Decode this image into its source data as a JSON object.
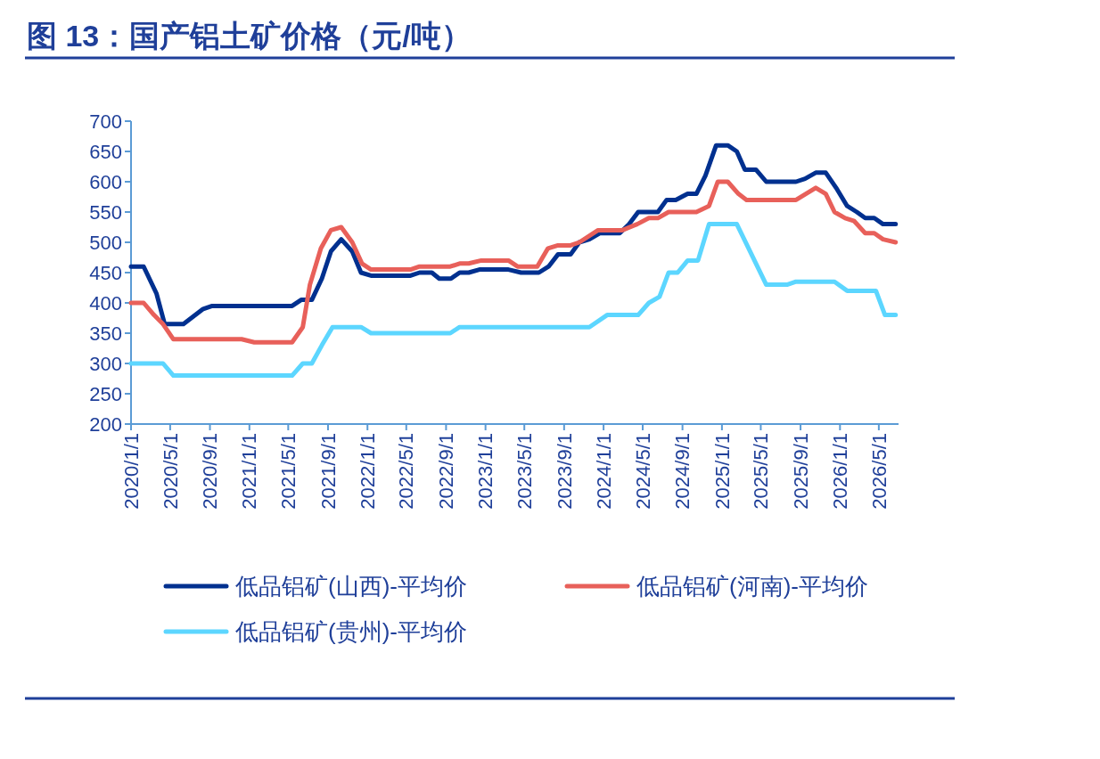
{
  "chart_data": {
    "type": "line",
    "title": "图 13：国产铝土矿价格（元/吨）",
    "xlim": [
      "2020-01-01",
      "2026-07-01"
    ],
    "xticks": [
      {
        "value": "2020-01-01",
        "label": "2020/1/1"
      },
      {
        "value": "2020-05-01",
        "label": "2020/5/1"
      },
      {
        "value": "2020-09-01",
        "label": "2020/9/1"
      },
      {
        "value": "2021-01-01",
        "label": "2021/1/1"
      },
      {
        "value": "2021-05-01",
        "label": "2021/5/1"
      },
      {
        "value": "2021-09-01",
        "label": "2021/9/1"
      },
      {
        "value": "2022-01-01",
        "label": "2022/1/1"
      },
      {
        "value": "2022-05-01",
        "label": "2022/5/1"
      },
      {
        "value": "2022-09-01",
        "label": "2022/9/1"
      },
      {
        "value": "2023-01-01",
        "label": "2023/1/1"
      },
      {
        "value": "2023-05-01",
        "label": "2023/5/1"
      },
      {
        "value": "2023-09-01",
        "label": "2023/9/1"
      },
      {
        "value": "2024-01-01",
        "label": "2024/1/1"
      },
      {
        "value": "2024-05-01",
        "label": "2024/5/1"
      },
      {
        "value": "2024-09-01",
        "label": "2024/9/1"
      },
      {
        "value": "2025-01-01",
        "label": "2025/1/1"
      },
      {
        "value": "2025-05-01",
        "label": "2025/5/1"
      },
      {
        "value": "2025-09-01",
        "label": "2025/9/1"
      },
      {
        "value": "2026-01-01",
        "label": "2026/1/1"
      },
      {
        "value": "2026-05-01",
        "label": "2026/5/1"
      }
    ],
    "ylim": [
      200,
      700
    ],
    "yticks": [
      200,
      250,
      300,
      350,
      400,
      450,
      500,
      550,
      600,
      650,
      700
    ],
    "grid": false,
    "legend": "bottom",
    "marker": "none",
    "line_style": "solid",
    "series": [
      {
        "name": "低品铝矿(山西)-平均价",
        "color": "#00308f",
        "x": [
          "2020-01-01",
          "2020-02-09",
          "2020-03-20",
          "2020-04-14",
          "2020-05-11",
          "2020-06-11",
          "2020-08-11",
          "2020-09-08",
          "2021-05-13",
          "2021-06-10",
          "2021-07-13",
          "2021-08-13",
          "2021-09-10",
          "2021-10-12",
          "2021-11-15",
          "2021-12-12",
          "2022-01-12",
          "2022-05-14",
          "2022-06-11",
          "2022-07-19",
          "2022-08-11",
          "2022-09-16",
          "2022-10-13",
          "2022-11-10",
          "2022-12-13",
          "2023-03-13",
          "2023-04-21",
          "2023-06-15",
          "2023-07-15",
          "2023-08-13",
          "2023-09-21",
          "2023-10-18",
          "2023-11-18",
          "2023-12-20",
          "2024-02-20",
          "2024-03-20",
          "2024-04-17",
          "2024-06-17",
          "2024-07-14",
          "2024-08-11",
          "2024-09-17",
          "2024-10-14",
          "2024-11-11",
          "2024-12-14",
          "2025-01-19",
          "2025-02-16",
          "2025-03-13",
          "2025-04-16",
          "2025-05-18",
          "2025-08-18",
          "2025-09-15",
          "2025-10-18",
          "2025-11-18",
          "2025-12-20",
          "2026-01-23",
          "2026-02-22",
          "2026-03-20",
          "2026-04-17",
          "2026-05-14",
          "2026-06-22"
        ],
        "values": [
          460,
          460,
          415,
          365,
          365,
          365,
          390,
          395,
          395,
          405,
          405,
          440,
          485,
          505,
          485,
          450,
          445,
          445,
          450,
          450,
          440,
          440,
          450,
          450,
          455,
          455,
          450,
          450,
          460,
          480,
          480,
          500,
          505,
          515,
          515,
          530,
          550,
          550,
          570,
          570,
          580,
          580,
          610,
          660,
          660,
          650,
          620,
          620,
          600,
          600,
          605,
          615,
          615,
          590,
          560,
          550,
          540,
          540,
          530,
          530
        ]
      },
      {
        "name": "低品铝矿(河南)-平均价",
        "color": "#e8605a",
        "x": [
          "2020-01-01",
          "2020-02-09",
          "2020-03-12",
          "2020-04-09",
          "2020-05-11",
          "2020-12-08",
          "2021-01-16",
          "2021-05-13",
          "2021-06-15",
          "2021-07-07",
          "2021-08-10",
          "2021-09-10",
          "2021-10-12",
          "2021-11-15",
          "2021-12-15",
          "2022-01-12",
          "2022-05-14",
          "2022-06-11",
          "2022-09-14",
          "2022-10-13",
          "2022-11-10",
          "2022-12-19",
          "2023-03-13",
          "2023-04-10",
          "2023-06-10",
          "2023-07-13",
          "2023-08-13",
          "2023-09-21",
          "2023-10-18",
          "2023-12-15",
          "2024-02-28",
          "2024-04-14",
          "2024-05-20",
          "2024-06-17",
          "2024-07-20",
          "2024-10-14",
          "2024-11-22",
          "2024-12-19",
          "2025-01-19",
          "2025-02-21",
          "2025-03-18",
          "2025-08-18",
          "2025-10-18",
          "2025-11-18",
          "2025-12-15",
          "2026-01-17",
          "2026-02-14",
          "2026-03-20",
          "2026-04-17",
          "2026-05-14",
          "2026-06-22"
        ],
        "values": [
          400,
          400,
          380,
          365,
          340,
          340,
          335,
          335,
          360,
          430,
          490,
          520,
          525,
          500,
          465,
          455,
          455,
          460,
          460,
          465,
          465,
          470,
          470,
          460,
          460,
          490,
          495,
          495,
          500,
          520,
          520,
          530,
          540,
          540,
          550,
          550,
          560,
          600,
          600,
          580,
          570,
          570,
          590,
          580,
          550,
          540,
          535,
          515,
          515,
          505,
          500
        ]
      },
      {
        "name": "低品铝矿(贵州)-平均价",
        "color": "#5cd6ff",
        "x": [
          "2020-01-01",
          "2020-04-09",
          "2020-05-11",
          "2021-05-13",
          "2021-06-15",
          "2021-07-13",
          "2021-08-13",
          "2021-09-15",
          "2021-12-12",
          "2022-01-12",
          "2022-09-14",
          "2022-10-13",
          "2023-11-18",
          "2024-01-12",
          "2024-04-17",
          "2024-05-20",
          "2024-06-22",
          "2024-07-20",
          "2024-08-17",
          "2024-09-17",
          "2024-10-19",
          "2024-11-22",
          "2025-02-16",
          "2025-05-18",
          "2025-07-21",
          "2025-08-18",
          "2025-12-15",
          "2026-01-23",
          "2026-04-22",
          "2026-05-20",
          "2026-06-22"
        ],
        "values": [
          300,
          300,
          280,
          280,
          300,
          300,
          330,
          360,
          360,
          350,
          350,
          360,
          360,
          380,
          380,
          400,
          410,
          450,
          450,
          470,
          470,
          530,
          530,
          430,
          430,
          435,
          435,
          420,
          420,
          380,
          380
        ]
      }
    ]
  }
}
